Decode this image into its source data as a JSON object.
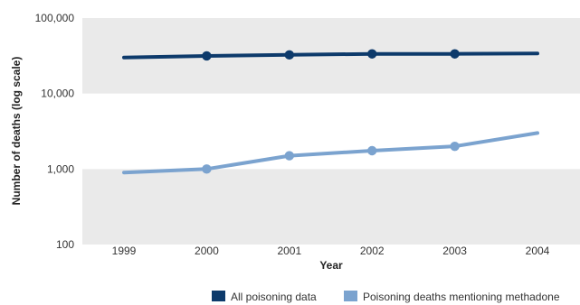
{
  "chart_data": {
    "type": "line",
    "title": "",
    "xlabel": "Year",
    "ylabel": "Number of deaths (log scale)",
    "y_scale": "log",
    "ylim": [
      100,
      100000
    ],
    "yticks": [
      100,
      1000,
      10000,
      100000
    ],
    "ytick_labels": [
      "100",
      "1,000",
      "10,000",
      "100,000"
    ],
    "categories": [
      "1999",
      "2000",
      "2001",
      "2002",
      "2003",
      "2004"
    ],
    "grid": false,
    "band_shading": "alternating grey bands between decades",
    "legend_position": "bottom-right",
    "series": [
      {
        "name": "All poisoning data",
        "color": "#0d3a6b",
        "values": [
          30000,
          31500,
          32500,
          33500,
          33500,
          34000
        ],
        "markers_at": [
          "2000",
          "2001",
          "2002",
          "2003"
        ]
      },
      {
        "name": "Poisoning deaths mentioning methadone",
        "color": "#7ba3cf",
        "values": [
          900,
          1000,
          1500,
          1750,
          2000,
          3000
        ],
        "markers_at": [
          "2000",
          "2001",
          "2002",
          "2003"
        ]
      }
    ]
  }
}
